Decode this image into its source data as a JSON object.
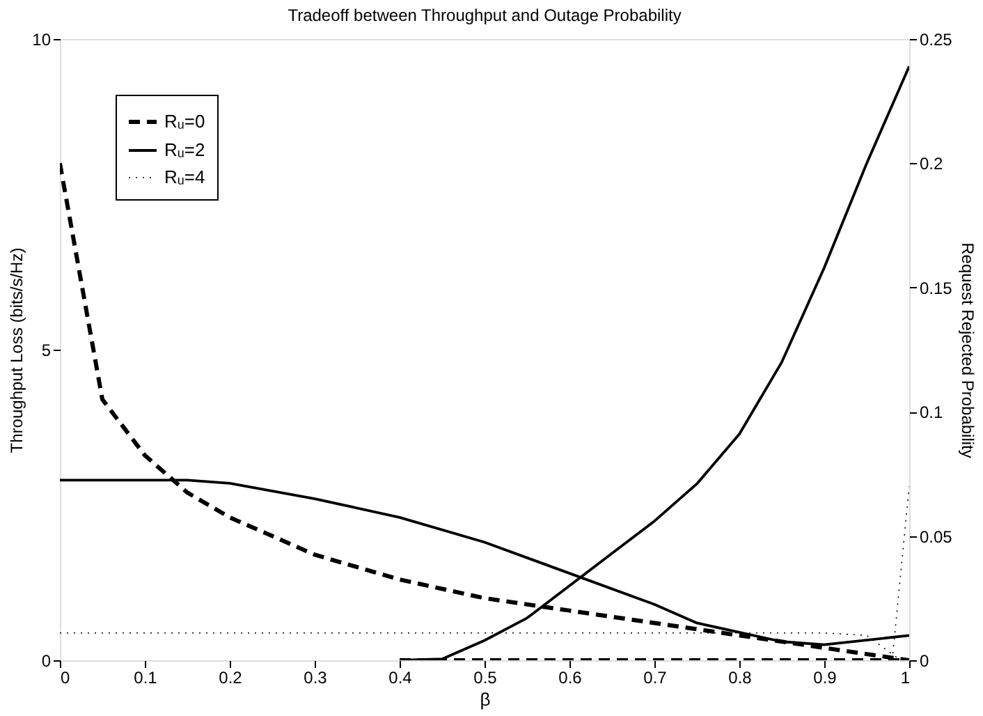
{
  "chart_data": {
    "type": "line",
    "title": "Tradeoff between Throughput and Outage Probability",
    "xlabel": "β",
    "ylabel": "Throughput Loss (bits/s/Hz)",
    "y2label": "Request Rejected Probability",
    "xlim": [
      0,
      1
    ],
    "xticks": [
      0,
      0.1,
      0.2,
      0.3,
      0.4,
      0.5,
      0.6,
      0.7,
      0.8,
      0.9,
      1
    ],
    "ylim": [
      0,
      10
    ],
    "yticks": [
      0,
      5,
      10
    ],
    "y2lim": [
      0,
      0.25
    ],
    "y2ticks": [
      0,
      0.05,
      0.1,
      0.15,
      0.2,
      0.25
    ],
    "grid": false,
    "legend": "top left",
    "marker": "none",
    "series": [
      {
        "name": "Rᵤ=0",
        "color": "#000000",
        "line_style": "dashed",
        "x": [
          0,
          0.05,
          0.1,
          0.15,
          0.2,
          0.25,
          0.3,
          0.4,
          0.5,
          0.6,
          0.7,
          0.8,
          0.9,
          1
        ],
        "values": [
          8,
          4.2,
          3.3,
          2.7,
          2.3,
          2.0,
          1.7,
          1.3,
          1.0,
          0.8,
          0.6,
          0.4,
          0.2,
          0
        ]
      },
      {
        "name": "Rᵤ=2",
        "color": "#000000",
        "line_style": "solid",
        "x": [
          0,
          0.15,
          0.2,
          0.3,
          0.4,
          0.5,
          0.6,
          0.7,
          0.75,
          0.8,
          0.85,
          0.9,
          1
        ],
        "values": [
          2.9,
          2.9,
          2.85,
          2.6,
          2.3,
          1.9,
          1.4,
          0.9,
          0.6,
          0.45,
          0.3,
          0.25,
          0.4
        ]
      },
      {
        "name": "Rᵤ=4",
        "color": "#000000",
        "line_style": "dotted",
        "x": [
          0,
          0.9,
          0.95,
          0.99
        ],
        "values": [
          0.44,
          0.44,
          0.4,
          0
        ]
      },
      {
        "color": "#000000",
        "line_style": "dashed",
        "axis": "y2",
        "x": [
          0.4,
          0.5,
          0.6,
          0.7,
          0.8,
          0.9,
          1
        ],
        "values": [
          0,
          0,
          0,
          0,
          0,
          0,
          0
        ]
      },
      {
        "color": "#000000",
        "line_style": "solid",
        "axis": "y2",
        "x": [
          0.4,
          0.45,
          0.5,
          0.55,
          0.6,
          0.65,
          0.7,
          0.75,
          0.8,
          0.85,
          0.9,
          0.95,
          1
        ],
        "values": [
          0,
          0.0005,
          0.008,
          0.017,
          0.03,
          0.043,
          0.056,
          0.071,
          0.091,
          0.12,
          0.158,
          0.2,
          0.239
        ]
      },
      {
        "color": "#000000",
        "line_style": "dotted",
        "axis": "y2",
        "x": [
          0.98,
          1
        ],
        "values": [
          0,
          0.07
        ]
      }
    ]
  }
}
